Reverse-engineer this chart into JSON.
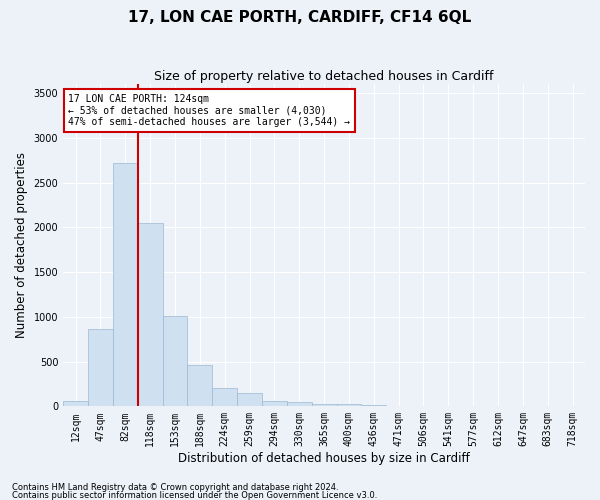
{
  "title": "17, LON CAE PORTH, CARDIFF, CF14 6QL",
  "subtitle": "Size of property relative to detached houses in Cardiff",
  "xlabel": "Distribution of detached houses by size in Cardiff",
  "ylabel": "Number of detached properties",
  "bar_labels": [
    "12sqm",
    "47sqm",
    "82sqm",
    "118sqm",
    "153sqm",
    "188sqm",
    "224sqm",
    "259sqm",
    "294sqm",
    "330sqm",
    "365sqm",
    "400sqm",
    "436sqm",
    "471sqm",
    "506sqm",
    "541sqm",
    "577sqm",
    "612sqm",
    "647sqm",
    "683sqm",
    "718sqm"
  ],
  "bar_values": [
    55,
    860,
    2720,
    2050,
    1010,
    460,
    205,
    145,
    65,
    50,
    30,
    25,
    10,
    0,
    0,
    0,
    0,
    0,
    0,
    0,
    0
  ],
  "bar_color": "#cfe0f0",
  "bar_edgecolor": "#9db8d4",
  "vline_color": "#cc0000",
  "ylim": [
    0,
    3600
  ],
  "yticks": [
    0,
    500,
    1000,
    1500,
    2000,
    2500,
    3000,
    3500
  ],
  "annotation_text": "17 LON CAE PORTH: 124sqm\n← 53% of detached houses are smaller (4,030)\n47% of semi-detached houses are larger (3,544) →",
  "annotation_box_color": "#ffffff",
  "annotation_box_edgecolor": "#cc0000",
  "footnote1": "Contains HM Land Registry data © Crown copyright and database right 2024.",
  "footnote2": "Contains public sector information licensed under the Open Government Licence v3.0.",
  "background_color": "#edf2f9",
  "grid_color": "#ffffff",
  "title_fontsize": 11,
  "subtitle_fontsize": 9,
  "axis_label_fontsize": 8.5,
  "tick_fontsize": 7,
  "footnote_fontsize": 6
}
